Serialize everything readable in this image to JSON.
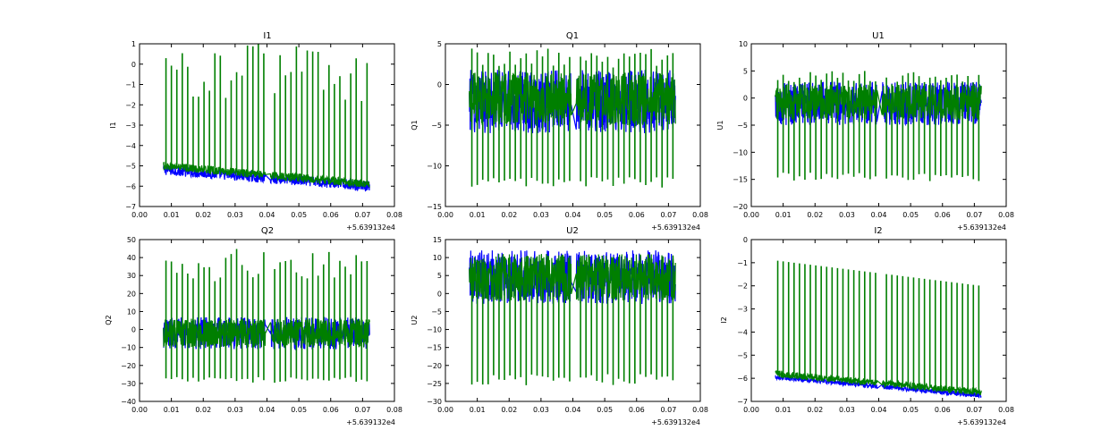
{
  "chart_data": [
    {
      "type": "line",
      "title": "I1",
      "xlabel": "",
      "ylabel": "I1",
      "x_offset_label": "+5.639132e4",
      "xlim": [
        0.0,
        0.08
      ],
      "ylim": [
        -7,
        1
      ],
      "xticks": [
        "0.00",
        "0.01",
        "0.02",
        "0.03",
        "0.04",
        "0.05",
        "0.06",
        "0.07",
        "0.08"
      ],
      "yticks": [
        "−7",
        "−6",
        "−5",
        "−4",
        "−3",
        "−2",
        "−1",
        "0",
        "1"
      ],
      "ytick_values": [
        -7,
        -6,
        -5,
        -4,
        -3,
        -2,
        -1,
        0,
        1
      ],
      "series": [
        {
          "name": "blue trace",
          "color": "#0000ff",
          "x_range": [
            0.0075,
            0.0722
          ],
          "baseline_start": -5.2,
          "baseline_end": -6.0,
          "noise_low": -0.25,
          "noise_high": 0.25,
          "spike_low": null,
          "spike_high": null
        },
        {
          "name": "green trace",
          "color": "#007f00",
          "x_range": [
            0.0075,
            0.0722
          ],
          "baseline_start": -5.0,
          "baseline_end": -5.9,
          "noise_low": -0.2,
          "noise_high": 0.2,
          "spike_low": null,
          "spike_high": 1.0
        }
      ],
      "gap": [
        0.0395,
        0.041
      ]
    },
    {
      "type": "line",
      "title": "Q1",
      "xlabel": "",
      "ylabel": "Q1",
      "x_offset_label": "+5.639132e4",
      "xlim": [
        0.0,
        0.08
      ],
      "ylim": [
        -15,
        5
      ],
      "xticks": [
        "0.00",
        "0.01",
        "0.02",
        "0.03",
        "0.04",
        "0.05",
        "0.06",
        "0.07",
        "0.08"
      ],
      "yticks": [
        "−15",
        "−10",
        "−5",
        "0",
        "5"
      ],
      "ytick_values": [
        -15,
        -10,
        -5,
        0,
        5
      ],
      "series": [
        {
          "name": "blue trace",
          "color": "#0000ff",
          "x_range": [
            0.0075,
            0.0722
          ],
          "baseline_start": -1.0,
          "baseline_end": -1.0,
          "noise_low": -5.0,
          "noise_high": 2.8,
          "spike_low": null,
          "spike_high": null
        },
        {
          "name": "green trace",
          "color": "#007f00",
          "x_range": [
            0.0075,
            0.0722
          ],
          "baseline_start": -1.0,
          "baseline_end": -1.0,
          "noise_low": -4.0,
          "noise_high": 2.5,
          "spike_low": -12.0,
          "spike_high": 4.5
        }
      ],
      "gap": [
        0.0395,
        0.041
      ]
    },
    {
      "type": "line",
      "title": "U1",
      "xlabel": "",
      "ylabel": "U1",
      "x_offset_label": "+5.639132e4",
      "xlim": [
        0.0,
        0.08
      ],
      "ylim": [
        -20,
        10
      ],
      "xticks": [
        "0.00",
        "0.01",
        "0.02",
        "0.03",
        "0.04",
        "0.05",
        "0.06",
        "0.07",
        "0.08"
      ],
      "yticks": [
        "−20",
        "−15",
        "−10",
        "−5",
        "0",
        "5",
        "10"
      ],
      "ytick_values": [
        -20,
        -15,
        -10,
        -5,
        0,
        5,
        10
      ],
      "series": [
        {
          "name": "blue trace",
          "color": "#0000ff",
          "x_range": [
            0.0075,
            0.0722
          ],
          "baseline_start": -0.5,
          "baseline_end": -0.5,
          "noise_low": -4.5,
          "noise_high": 3.5,
          "spike_low": null,
          "spike_high": null
        },
        {
          "name": "green trace",
          "color": "#007f00",
          "x_range": [
            0.0075,
            0.0722
          ],
          "baseline_start": -0.5,
          "baseline_end": -0.5,
          "noise_low": -3.5,
          "noise_high": 3.0,
          "spike_low": -14.5,
          "spike_high": 5.0
        }
      ],
      "gap": [
        0.0395,
        0.041
      ]
    },
    {
      "type": "line",
      "title": "Q2",
      "xlabel": "",
      "ylabel": "Q2",
      "x_offset_label": "+5.639132e4",
      "xlim": [
        0.0,
        0.08
      ],
      "ylim": [
        -40,
        50
      ],
      "xticks": [
        "0.00",
        "0.01",
        "0.02",
        "0.03",
        "0.04",
        "0.05",
        "0.06",
        "0.07",
        "0.08"
      ],
      "yticks": [
        "−40",
        "−30",
        "−20",
        "−10",
        "0",
        "10",
        "20",
        "30",
        "40",
        "50"
      ],
      "ytick_values": [
        -40,
        -30,
        -20,
        -10,
        0,
        10,
        20,
        30,
        40,
        50
      ],
      "series": [
        {
          "name": "blue trace",
          "color": "#0000ff",
          "x_range": [
            0.0075,
            0.0722
          ],
          "baseline_start": -1.0,
          "baseline_end": -1.0,
          "noise_low": -10.0,
          "noise_high": 8.0,
          "spike_low": null,
          "spike_high": null
        },
        {
          "name": "green trace",
          "color": "#007f00",
          "x_range": [
            0.0075,
            0.0722
          ],
          "baseline_start": -1.0,
          "baseline_end": -1.0,
          "noise_low": -9.0,
          "noise_high": 7.0,
          "spike_low": -28.0,
          "spike_high": 45.0
        }
      ],
      "gap": [
        0.0395,
        0.041
      ]
    },
    {
      "type": "line",
      "title": "U2",
      "xlabel": "",
      "ylabel": "U2",
      "x_offset_label": "+5.639132e4",
      "xlim": [
        0.0,
        0.08
      ],
      "ylim": [
        -30,
        15
      ],
      "xticks": [
        "0.00",
        "0.01",
        "0.02",
        "0.03",
        "0.04",
        "0.05",
        "0.06",
        "0.07",
        "0.08"
      ],
      "yticks": [
        "−30",
        "−25",
        "−20",
        "−15",
        "−10",
        "−5",
        "0",
        "5",
        "10",
        "15"
      ],
      "ytick_values": [
        -30,
        -25,
        -20,
        -15,
        -10,
        -5,
        0,
        5,
        10,
        15
      ],
      "series": [
        {
          "name": "blue trace",
          "color": "#0000ff",
          "x_range": [
            0.0075,
            0.0722
          ],
          "baseline_start": 2.0,
          "baseline_end": 2.0,
          "noise_low": -5.0,
          "noise_high": 10.0,
          "spike_low": null,
          "spike_high": null
        },
        {
          "name": "green trace",
          "color": "#007f00",
          "x_range": [
            0.0075,
            0.0722
          ],
          "baseline_start": 2.0,
          "baseline_end": 2.0,
          "noise_low": -4.0,
          "noise_high": 9.0,
          "spike_low": -24.0,
          "spike_high": 11.0
        }
      ],
      "gap": [
        0.0395,
        0.041
      ]
    },
    {
      "type": "line",
      "title": "I2",
      "xlabel": "",
      "ylabel": "I2",
      "x_offset_label": "+5.639132e4",
      "xlim": [
        0.0,
        0.08
      ],
      "ylim": [
        -7,
        0
      ],
      "xticks": [
        "0.00",
        "0.01",
        "0.02",
        "0.03",
        "0.04",
        "0.05",
        "0.06",
        "0.07",
        "0.08"
      ],
      "yticks": [
        "−7",
        "−6",
        "−5",
        "−4",
        "−3",
        "−2",
        "−1",
        "0"
      ],
      "ytick_values": [
        -7,
        -6,
        -5,
        -4,
        -3,
        -2,
        -1,
        0
      ],
      "series": [
        {
          "name": "blue trace",
          "color": "#0000ff",
          "x_range": [
            0.0075,
            0.0722
          ],
          "baseline_start": -5.95,
          "baseline_end": -6.75,
          "noise_low": -0.1,
          "noise_high": 0.1,
          "spike_low": null,
          "spike_high": null
        },
        {
          "name": "green trace",
          "color": "#007f00",
          "x_range": [
            0.0075,
            0.0722
          ],
          "baseline_start": -5.8,
          "baseline_end": -6.6,
          "noise_low": -0.15,
          "noise_high": 0.15,
          "spike_low": null,
          "spike_high": -0.9
        },
        {
          "name": "green spike tops",
          "color": "#007f00",
          "x_range": [
            0.0075,
            0.0722
          ],
          "baseline_start": -0.9,
          "baseline_end": -2.0,
          "noise_low": 0,
          "noise_high": 0,
          "spike_low": null,
          "spike_high": null
        }
      ],
      "gap": [
        0.0395,
        0.041
      ]
    }
  ]
}
